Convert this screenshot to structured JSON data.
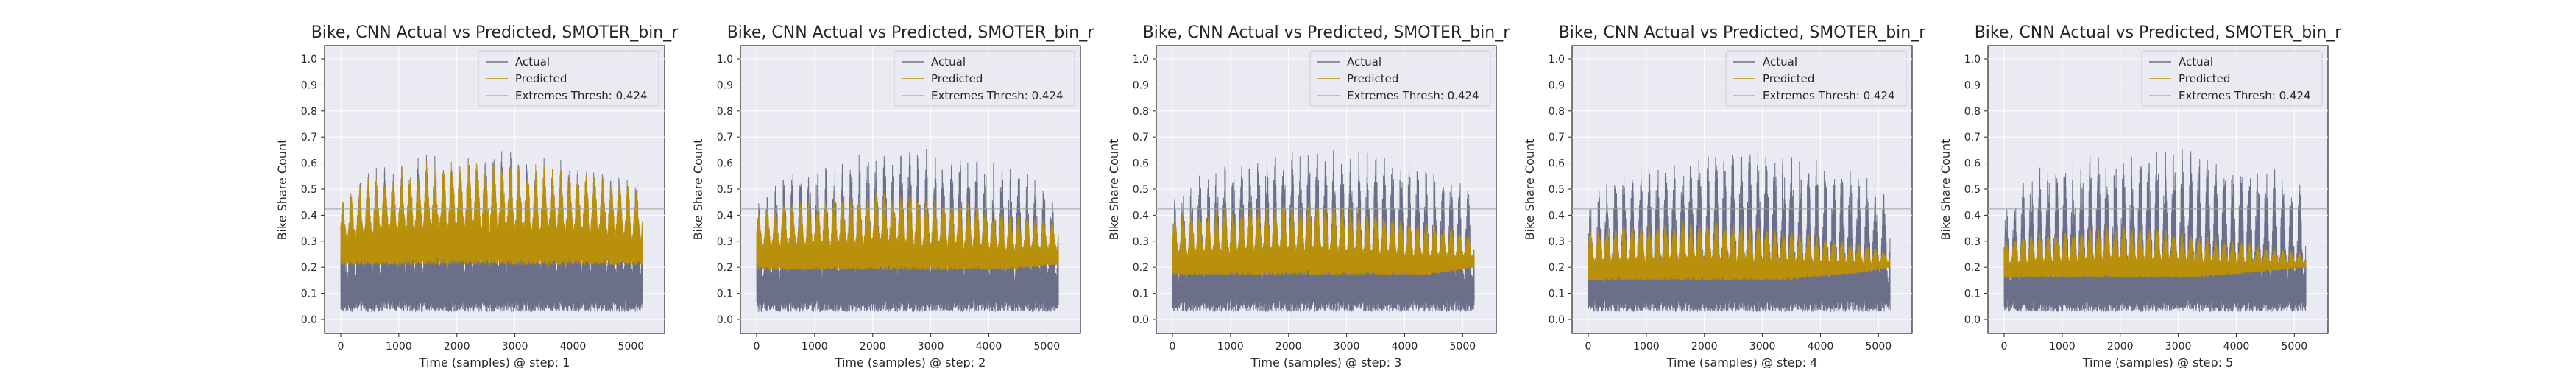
{
  "chart_data": [
    {
      "type": "line",
      "title": "Bike, CNN Actual vs Predicted, SMOTER_bin_r",
      "xlabel": "Time (samples) @ step: 1",
      "ylabel": "Bike Share Count",
      "xlim": [
        0,
        5300
      ],
      "ylim": [
        0,
        1.0
      ],
      "xticks": [
        0,
        1000,
        2000,
        3000,
        4000,
        5000
      ],
      "yticks": [
        0.0,
        0.1,
        0.2,
        0.3,
        0.4,
        0.5,
        0.6,
        0.7,
        0.8,
        0.9,
        1.0
      ],
      "grid": true,
      "legend_position": "top-right",
      "threshold": 0.424,
      "n_samples": 5200,
      "series": [
        {
          "name": "Actual",
          "color": "#6b6f8a",
          "envelope_max": [
            0.45,
            0.58,
            0.6,
            0.63,
            0.65,
            0.65,
            0.66,
            0.64,
            0.62,
            0.6,
            0.58,
            0.55
          ],
          "envelope_min": [
            0.01,
            0.01,
            0.01,
            0.01,
            0.01,
            0.01,
            0.01,
            0.01,
            0.01,
            0.01,
            0.01,
            0.01
          ]
        },
        {
          "name": "Predicted",
          "color": "#b8900c",
          "envelope_max": [
            0.45,
            0.55,
            0.58,
            0.6,
            0.62,
            0.62,
            0.61,
            0.6,
            0.58,
            0.57,
            0.55,
            0.5
          ],
          "envelope_min": [
            0.21,
            0.21,
            0.21,
            0.21,
            0.21,
            0.21,
            0.21,
            0.21,
            0.21,
            0.21,
            0.21,
            0.21
          ]
        },
        {
          "name": "Extremes Thresh: 0.424",
          "color": "#a8b5a8",
          "constant": 0.424
        }
      ]
    },
    {
      "type": "line",
      "title": "Bike, CNN Actual vs Predicted, SMOTER_bin_r",
      "xlabel": "Time (samples) @ step: 2",
      "ylabel": "Bike Share Count",
      "xlim": [
        0,
        5300
      ],
      "ylim": [
        0,
        1.0
      ],
      "xticks": [
        0,
        1000,
        2000,
        3000,
        4000,
        5000
      ],
      "yticks": [
        0.0,
        0.1,
        0.2,
        0.3,
        0.4,
        0.5,
        0.6,
        0.7,
        0.8,
        0.9,
        1.0
      ],
      "grid": true,
      "legend_position": "top-right",
      "threshold": 0.424,
      "n_samples": 5200,
      "series": [
        {
          "name": "Actual",
          "color": "#6b6f8a",
          "envelope_max": [
            0.45,
            0.58,
            0.6,
            0.63,
            0.65,
            0.66,
            0.66,
            0.65,
            0.63,
            0.6,
            0.58,
            0.5
          ],
          "envelope_min": [
            0.01,
            0.01,
            0.01,
            0.01,
            0.01,
            0.01,
            0.01,
            0.01,
            0.01,
            0.01,
            0.01,
            0.01
          ]
        },
        {
          "name": "Predicted",
          "color": "#b8900c",
          "envelope_max": [
            0.42,
            0.45,
            0.46,
            0.47,
            0.48,
            0.5,
            0.48,
            0.46,
            0.44,
            0.42,
            0.4,
            0.38
          ],
          "envelope_min": [
            0.19,
            0.19,
            0.19,
            0.19,
            0.19,
            0.19,
            0.19,
            0.19,
            0.19,
            0.19,
            0.2,
            0.21
          ]
        },
        {
          "name": "Extremes Thresh: 0.424",
          "color": "#a8b5a8",
          "constant": 0.424
        }
      ]
    },
    {
      "type": "line",
      "title": "Bike, CNN Actual vs Predicted, SMOTER_bin_r",
      "xlabel": "Time (samples) @ step: 3",
      "ylabel": "Bike Share Count",
      "xlim": [
        0,
        5300
      ],
      "ylim": [
        0,
        1.0
      ],
      "xticks": [
        0,
        1000,
        2000,
        3000,
        4000,
        5000
      ],
      "yticks": [
        0.0,
        0.1,
        0.2,
        0.3,
        0.4,
        0.5,
        0.6,
        0.7,
        0.8,
        0.9,
        1.0
      ],
      "grid": true,
      "legend_position": "top-right",
      "threshold": 0.424,
      "n_samples": 5200,
      "series": [
        {
          "name": "Actual",
          "color": "#6b6f8a",
          "envelope_max": [
            0.45,
            0.58,
            0.6,
            0.63,
            0.65,
            0.66,
            0.66,
            0.65,
            0.63,
            0.6,
            0.58,
            0.5
          ],
          "envelope_min": [
            0.01,
            0.01,
            0.01,
            0.01,
            0.01,
            0.01,
            0.01,
            0.01,
            0.01,
            0.01,
            0.01,
            0.01
          ]
        },
        {
          "name": "Predicted",
          "color": "#b8900c",
          "envelope_max": [
            0.4,
            0.42,
            0.43,
            0.44,
            0.45,
            0.46,
            0.44,
            0.42,
            0.4,
            0.38,
            0.36,
            0.32
          ],
          "envelope_min": [
            0.17,
            0.17,
            0.17,
            0.17,
            0.17,
            0.17,
            0.17,
            0.17,
            0.17,
            0.17,
            0.18,
            0.2
          ]
        },
        {
          "name": "Extremes Thresh: 0.424",
          "color": "#a8b5a8",
          "constant": 0.424
        }
      ]
    },
    {
      "type": "line",
      "title": "Bike, CNN Actual vs Predicted, SMOTER_bin_r",
      "xlabel": "Time (samples) @ step: 4",
      "ylabel": "Bike Share Count",
      "xlim": [
        0,
        5300
      ],
      "ylim": [
        0,
        1.0
      ],
      "xticks": [
        0,
        1000,
        2000,
        3000,
        4000,
        5000
      ],
      "yticks": [
        0.0,
        0.1,
        0.2,
        0.3,
        0.4,
        0.5,
        0.6,
        0.7,
        0.8,
        0.9,
        1.0
      ],
      "grid": true,
      "legend_position": "top-right",
      "threshold": 0.424,
      "n_samples": 5200,
      "series": [
        {
          "name": "Actual",
          "color": "#6b6f8a",
          "envelope_max": [
            0.45,
            0.58,
            0.6,
            0.63,
            0.65,
            0.66,
            0.66,
            0.65,
            0.63,
            0.6,
            0.58,
            0.5
          ],
          "envelope_min": [
            0.01,
            0.01,
            0.01,
            0.01,
            0.01,
            0.01,
            0.01,
            0.01,
            0.01,
            0.01,
            0.01,
            0.01
          ]
        },
        {
          "name": "Predicted",
          "color": "#b8900c",
          "envelope_max": [
            0.34,
            0.36,
            0.37,
            0.38,
            0.38,
            0.38,
            0.37,
            0.35,
            0.33,
            0.31,
            0.29,
            0.26
          ],
          "envelope_min": [
            0.15,
            0.15,
            0.15,
            0.15,
            0.15,
            0.15,
            0.15,
            0.15,
            0.16,
            0.17,
            0.18,
            0.2
          ]
        },
        {
          "name": "Extremes Thresh: 0.424",
          "color": "#a8b5a8",
          "constant": 0.424
        }
      ]
    },
    {
      "type": "line",
      "title": "Bike, CNN Actual vs Predicted, SMOTER_bin_r",
      "xlabel": "Time (samples) @ step: 5",
      "ylabel": "Bike Share Count",
      "xlim": [
        0,
        5300
      ],
      "ylim": [
        0,
        1.0
      ],
      "xticks": [
        0,
        1000,
        2000,
        3000,
        4000,
        5000
      ],
      "yticks": [
        0.0,
        0.1,
        0.2,
        0.3,
        0.4,
        0.5,
        0.6,
        0.7,
        0.8,
        0.9,
        1.0
      ],
      "grid": true,
      "legend_position": "top-right",
      "threshold": 0.424,
      "n_samples": 5200,
      "series": [
        {
          "name": "Actual",
          "color": "#6b6f8a",
          "envelope_max": [
            0.45,
            0.58,
            0.6,
            0.63,
            0.65,
            0.66,
            0.66,
            0.65,
            0.63,
            0.6,
            0.58,
            0.5
          ],
          "envelope_min": [
            0.01,
            0.01,
            0.01,
            0.01,
            0.01,
            0.01,
            0.01,
            0.01,
            0.01,
            0.01,
            0.01,
            0.01
          ]
        },
        {
          "name": "Predicted",
          "color": "#b8900c",
          "envelope_max": [
            0.31,
            0.33,
            0.34,
            0.35,
            0.36,
            0.36,
            0.35,
            0.33,
            0.31,
            0.29,
            0.27,
            0.25
          ],
          "envelope_min": [
            0.16,
            0.16,
            0.16,
            0.16,
            0.16,
            0.16,
            0.16,
            0.16,
            0.17,
            0.18,
            0.19,
            0.2
          ]
        },
        {
          "name": "Extremes Thresh: 0.424",
          "color": "#a8b5a8",
          "constant": 0.424
        }
      ]
    }
  ]
}
